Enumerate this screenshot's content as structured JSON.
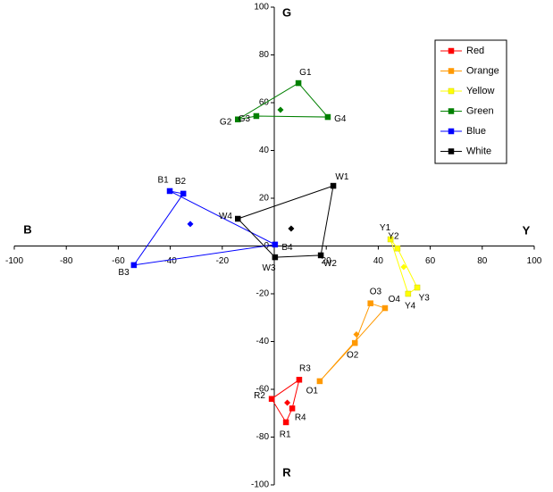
{
  "chart_data": {
    "type": "scatter-polygon",
    "x_axis_left_label": "B",
    "x_axis_right_label": "Y",
    "y_axis_top_label": "G",
    "y_axis_bottom_label": "R",
    "xlim": [
      -100,
      100
    ],
    "ylim": [
      -100,
      100
    ],
    "xticks": [
      -100,
      -80,
      -60,
      -40,
      -20,
      20,
      40,
      60,
      80,
      100
    ],
    "yticks": [
      -100,
      -80,
      -60,
      -40,
      -20,
      0,
      20,
      40,
      60,
      80,
      100
    ],
    "grid": false,
    "legend_position": "upper right",
    "series": [
      {
        "name": "Red",
        "color": "#ff0000",
        "labels": [
          "R1",
          "R2",
          "R3",
          "R4"
        ],
        "x": [
          4.5,
          -1,
          9.6,
          6.9
        ],
        "y": [
          -73.8,
          -64,
          -56,
          -68
        ],
        "centroid_x": 5,
        "centroid_y": -65.6
      },
      {
        "name": "Orange",
        "color": "#ff9900",
        "labels": [
          "O1",
          "O2",
          "O3",
          "O4"
        ],
        "x": [
          17.5,
          31,
          37,
          42.6
        ],
        "y": [
          -56.6,
          -40.6,
          -24,
          -26
        ],
        "centroid_x": 31.6,
        "centroid_y": -37
      },
      {
        "name": "Yellow",
        "color": "#ffff00",
        "labels": [
          "Y1",
          "Y2",
          "Y3",
          "Y4"
        ],
        "x": [
          44.7,
          47.4,
          55,
          51.5
        ],
        "y": [
          2.8,
          -1,
          -17.4,
          -20
        ],
        "centroid_x": 49.8,
        "centroid_y": -8.8
      },
      {
        "name": "Green",
        "color": "#008000",
        "labels": [
          "G1",
          "G2",
          "G3",
          "G4"
        ],
        "x": [
          9.3,
          -14,
          -6.9,
          20.6
        ],
        "y": [
          68.2,
          53,
          54.4,
          54
        ],
        "centroid_x": 2.4,
        "centroid_y": 57
      },
      {
        "name": "Blue",
        "color": "#0000ff",
        "labels": [
          "B1",
          "B2",
          "B3",
          "B4"
        ],
        "x": [
          -40.2,
          -35,
          -54,
          0.3
        ],
        "y": [
          23,
          21.9,
          -8,
          0.6
        ],
        "centroid_x": -32.3,
        "centroid_y": 9.2
      },
      {
        "name": "White",
        "color": "#000000",
        "labels": [
          "W1",
          "W2",
          "W3",
          "W4"
        ],
        "x": [
          22.7,
          17.9,
          0.3,
          -14
        ],
        "y": [
          25.2,
          -3.9,
          -4.7,
          11.4
        ],
        "centroid_x": 6.5,
        "centroid_y": 7.3
      }
    ]
  }
}
